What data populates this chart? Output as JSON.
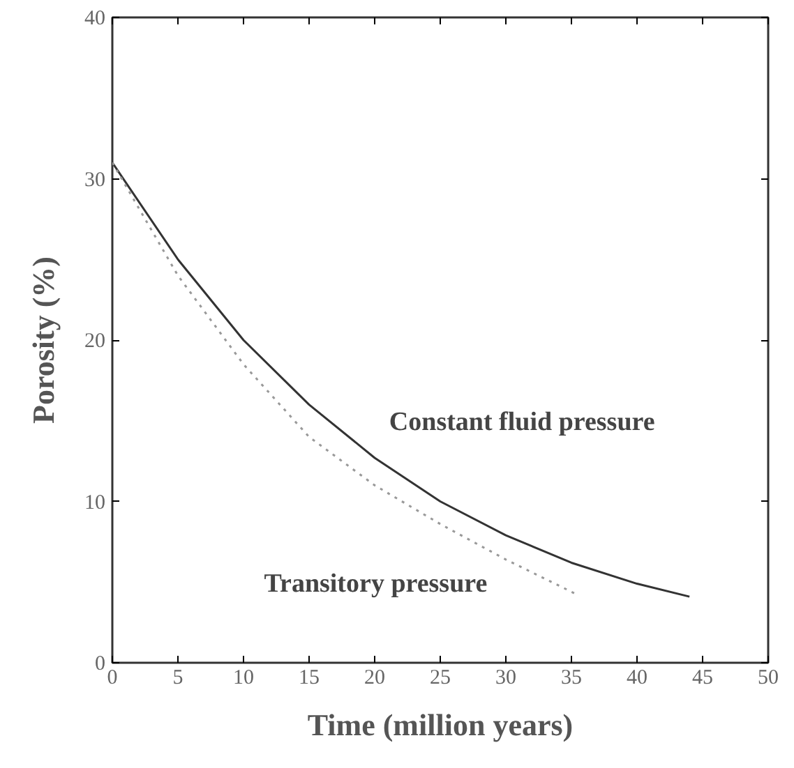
{
  "chart_data": {
    "type": "line",
    "xlabel": "Time (million years)",
    "ylabel": "Porosity (%)",
    "xlim": [
      0,
      50
    ],
    "ylim": [
      0,
      40
    ],
    "xticks": [
      0,
      5,
      10,
      15,
      20,
      25,
      30,
      35,
      40,
      45,
      50
    ],
    "yticks": [
      0,
      10,
      20,
      30,
      40
    ],
    "grid": false,
    "legend": false,
    "series": [
      {
        "name": "Constant fluid pressure",
        "color": "#333333",
        "line_style": "solid",
        "x": [
          0,
          5,
          10,
          15,
          20,
          25,
          30,
          35,
          40,
          44
        ],
        "values": [
          31,
          25,
          20,
          16,
          12.7,
          10,
          7.9,
          6.2,
          4.9,
          4.1
        ]
      },
      {
        "name": "Transitory pressure",
        "color": "#999999",
        "line_style": "dotted",
        "x": [
          0,
          5,
          10,
          15,
          20,
          25,
          30,
          35.5
        ],
        "values": [
          31,
          24,
          18.5,
          14,
          11,
          8.6,
          6.4,
          4.2
        ]
      }
    ]
  }
}
